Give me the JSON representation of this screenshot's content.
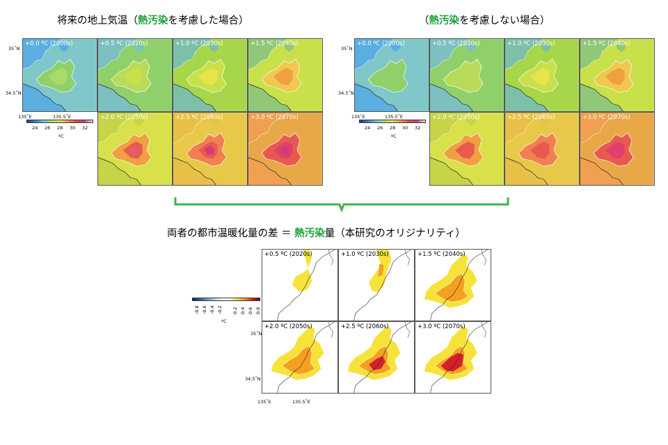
{
  "headings": {
    "left_prefix": "将来の地上気温（",
    "left_em": "熱汚染",
    "left_suffix": "を考慮した場合）",
    "right_prefix": "（",
    "right_em": "熱汚染",
    "right_suffix": "を考慮しない場合）",
    "bottom_prefix": "両者の都市温暖化量の差 ＝ ",
    "bottom_em": "熱汚染",
    "bottom_suffix": "量（本研究のオリジナリティ）"
  },
  "top_panels": [
    {
      "label": "+0.0 ºC (2000s)"
    },
    {
      "label": "+0.5 ºC (2020s)"
    },
    {
      "label": "+1.0 ºC (2030s)"
    },
    {
      "label": "+1.5 ºC (2040s)"
    },
    {
      "label": "+2.0 ºC (2050s)"
    },
    {
      "label": "+2.5 ºC (2060s)"
    },
    {
      "label": "+3.0 ºC (2070s)"
    }
  ],
  "diff_panels": [
    {
      "label": "+0.5 ºC (2020s)"
    },
    {
      "label": "+1.0 ºC (2030s)"
    },
    {
      "label": "+1.5 ºC (2040s)"
    },
    {
      "label": "+2.0 ºC (2050s)"
    },
    {
      "label": "+2.5 ºC (2060s)"
    },
    {
      "label": "+3.0 ºC (2070s)"
    }
  ],
  "axes": {
    "lat_top": "35˚N",
    "lat_bottom": "34.5˚N",
    "lon_left": "135˚E",
    "lon_right": "135.5˚E"
  },
  "temp_colorbar": {
    "ticks": [
      "24",
      "26",
      "28",
      "30",
      "32"
    ],
    "unit": "ºC"
  },
  "diff_colorbar": {
    "ticks": [
      "-0.8",
      "-0.6",
      "-0.4",
      "-0.2",
      "0.2",
      "0.4",
      "0.6",
      "0.8"
    ],
    "unit": "ºC"
  },
  "colors": {
    "accent": "#1aa33c",
    "bracket": "#3cb34a",
    "sea": "#5aaee0",
    "cool_land": "#8fd06a",
    "mid_land": "#c8e04a",
    "warm": "#f0b040",
    "hot": "#e85a50",
    "very_hot": "#d33a7a",
    "diff_low": "#f7e23a",
    "diff_mid": "#f5a020",
    "diff_high": "#d4202a"
  }
}
